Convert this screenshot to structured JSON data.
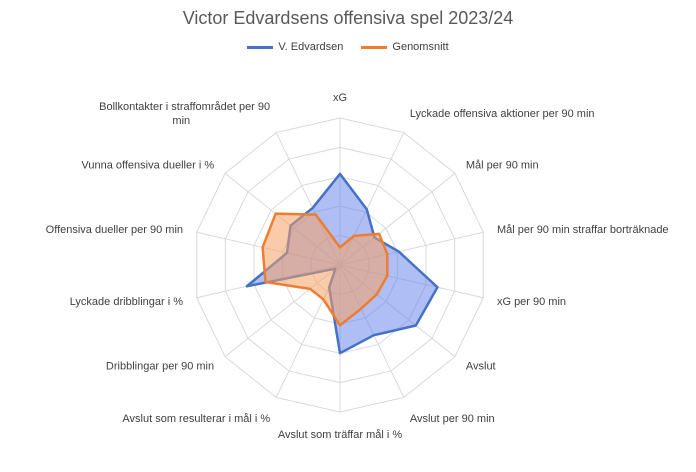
{
  "chart_data": {
    "type": "radar",
    "title": "Victor Edvardsens offensiva spel 2023/24",
    "legend_position": "top",
    "grid": true,
    "rlim": [
      0,
      10
    ],
    "categories": [
      "xG",
      "Lyckade offensiva aktioner per 90 min",
      "Mål per 90 min",
      "Mål per 90 min straffar borträknade",
      "xG per 90 min",
      "Avslut",
      "Avslut per 90 min",
      "Avslut som träffar mål i %",
      "Avslut som resulterar i mål i %",
      "Dribblingar per 90 min",
      "Lyckade dribblingar i %",
      "Offensiva dueller per 90 min",
      "Vunna offensiva dueller i %",
      "Bollkontakter i straffområdet per 90 min"
    ],
    "series": [
      {
        "name": "V. Edvardsen",
        "color": "#4472c4",
        "values": [
          6.2,
          4.2,
          3.0,
          4.1,
          6.8,
          6.6,
          5.3,
          6.0,
          1.7,
          0.4,
          6.5,
          3.7,
          4.3,
          4.3
        ]
      },
      {
        "name": "Genomsnitt",
        "color": "#ed7d31",
        "values": [
          1.2,
          2.2,
          3.4,
          3.3,
          3.3,
          3.2,
          3.3,
          4.1,
          2.6,
          2.6,
          5.2,
          5.4,
          5.6,
          3.8
        ]
      }
    ]
  }
}
